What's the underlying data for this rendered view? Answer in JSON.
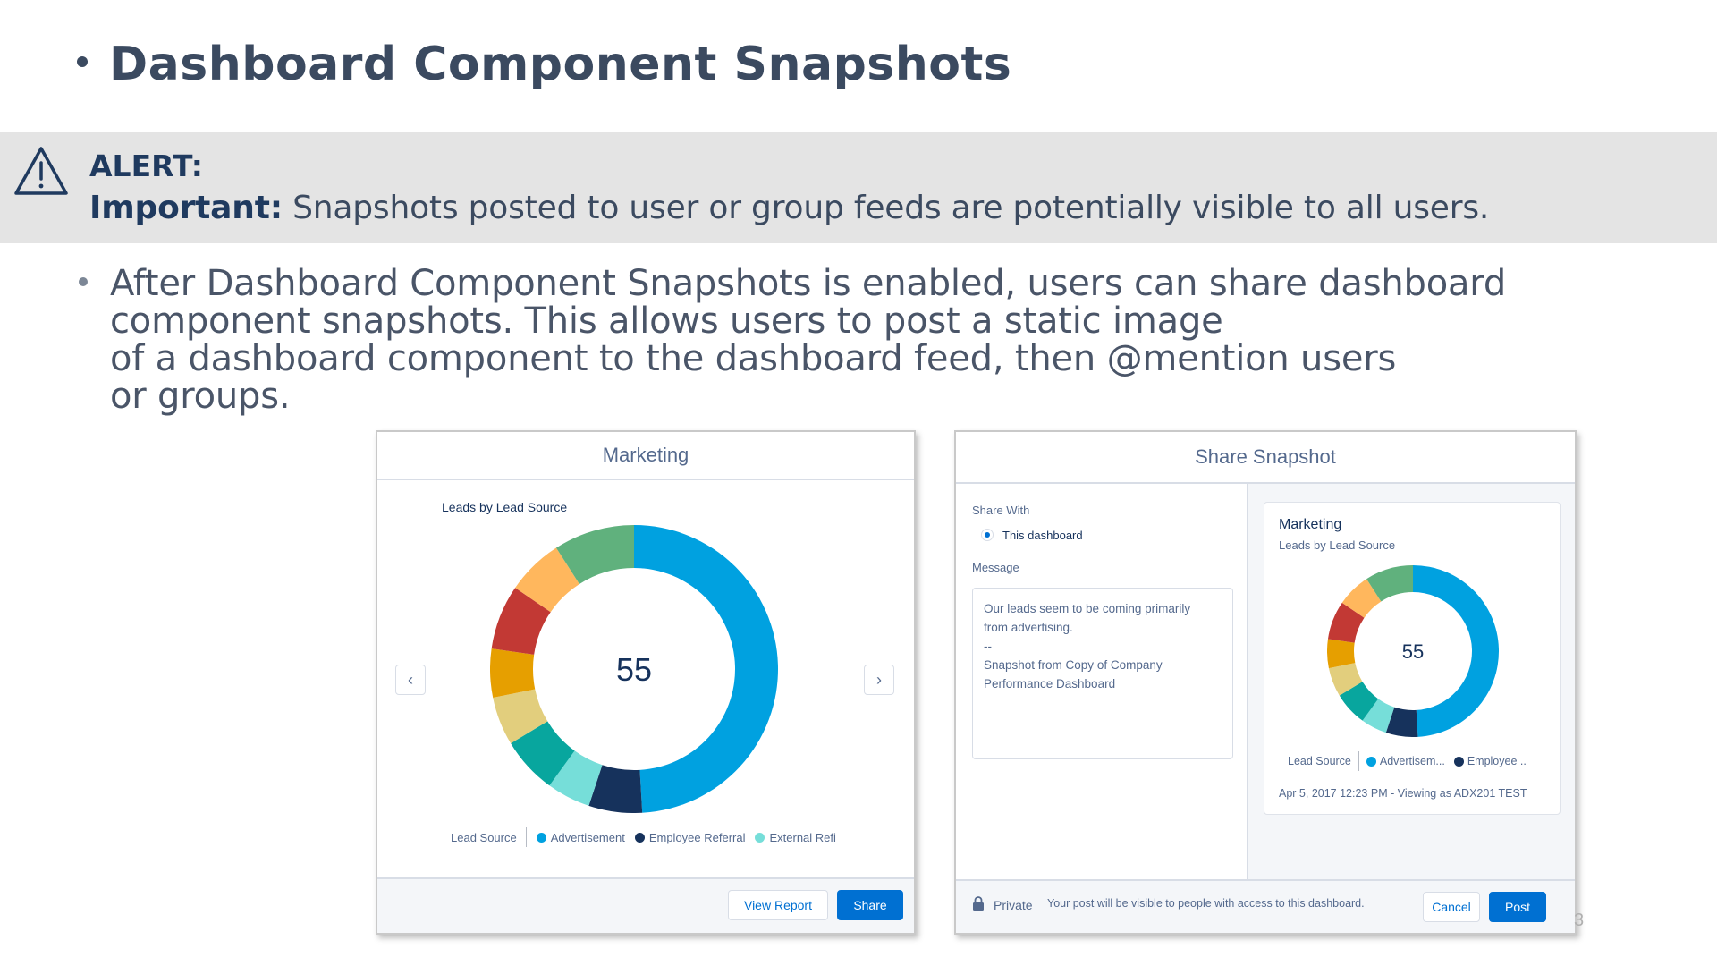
{
  "slide": {
    "title": "Dashboard Component Snapshots",
    "page_number": "3"
  },
  "alert": {
    "icon": "warning-triangle-icon",
    "label": "ALERT:",
    "important_label": "Important:",
    "text": " Snapshots posted to user or group feeds are potentially visible to all users."
  },
  "body": {
    "lines": [
      "After Dashboard Component Snapshots is enabled, users can share dashboard",
      "component snapshots. This allows users to post a static image",
      "of a dashboard component to the dashboard feed, then @mention users",
      "or groups."
    ]
  },
  "marketing_card": {
    "title": "Marketing",
    "chart_title": "Leads by Lead Source",
    "center_value": "55",
    "legend_title": "Lead Source",
    "legend_items": [
      "Advertisement",
      "Employee Referral",
      "External Refi"
    ],
    "view_report_label": "View Report",
    "share_label": "Share",
    "prev_icon": "chevron-left-icon",
    "next_icon": "chevron-right-icon"
  },
  "share_card": {
    "title": "Share Snapshot",
    "share_with_label": "Share With",
    "share_with_value": "This dashboard",
    "message_label": "Message",
    "message_lines": [
      "Our leads seem to be coming primarily",
      "from advertising.",
      "--",
      "Snapshot from Copy of Company",
      "Performance Dashboard"
    ],
    "preview": {
      "title": "Marketing",
      "subtitle": "Leads by Lead Source",
      "center_value": "55",
      "legend_title": "Lead Source",
      "legend_items": [
        "Advertisem...",
        "Employee .."
      ],
      "timestamp": "Apr 5, 2017 12:23 PM - Viewing as ADX201 TEST"
    },
    "private_label": "Private",
    "visibility_note": "Your post will be visible to people with access to this dashboard.",
    "cancel_label": "Cancel",
    "post_label": "Post",
    "lock_icon": "lock-icon"
  },
  "chart_data": {
    "type": "pie",
    "title": "Leads by Lead Source",
    "center_label": "55",
    "legend_title": "Lead Source",
    "slices": [
      {
        "value": 27,
        "color": "#00a1e0"
      },
      {
        "value": 3.3,
        "color": "#16325c"
      },
      {
        "value": 2.7,
        "color": "#76ded9"
      },
      {
        "value": 3.5,
        "color": "#08a69e"
      },
      {
        "value": 3,
        "color": "#e2ce7d"
      },
      {
        "value": 3,
        "color": "#e69f00"
      },
      {
        "value": 4,
        "color": "#c23934"
      },
      {
        "value": 3.5,
        "color": "#ffb75d"
      },
      {
        "value": 5,
        "color": "#60b17d"
      }
    ],
    "legend_colors": {
      "Advertisement": "#00a1e0",
      "Employee Referral": "#16325c",
      "External Referral": "#76ded9"
    }
  }
}
